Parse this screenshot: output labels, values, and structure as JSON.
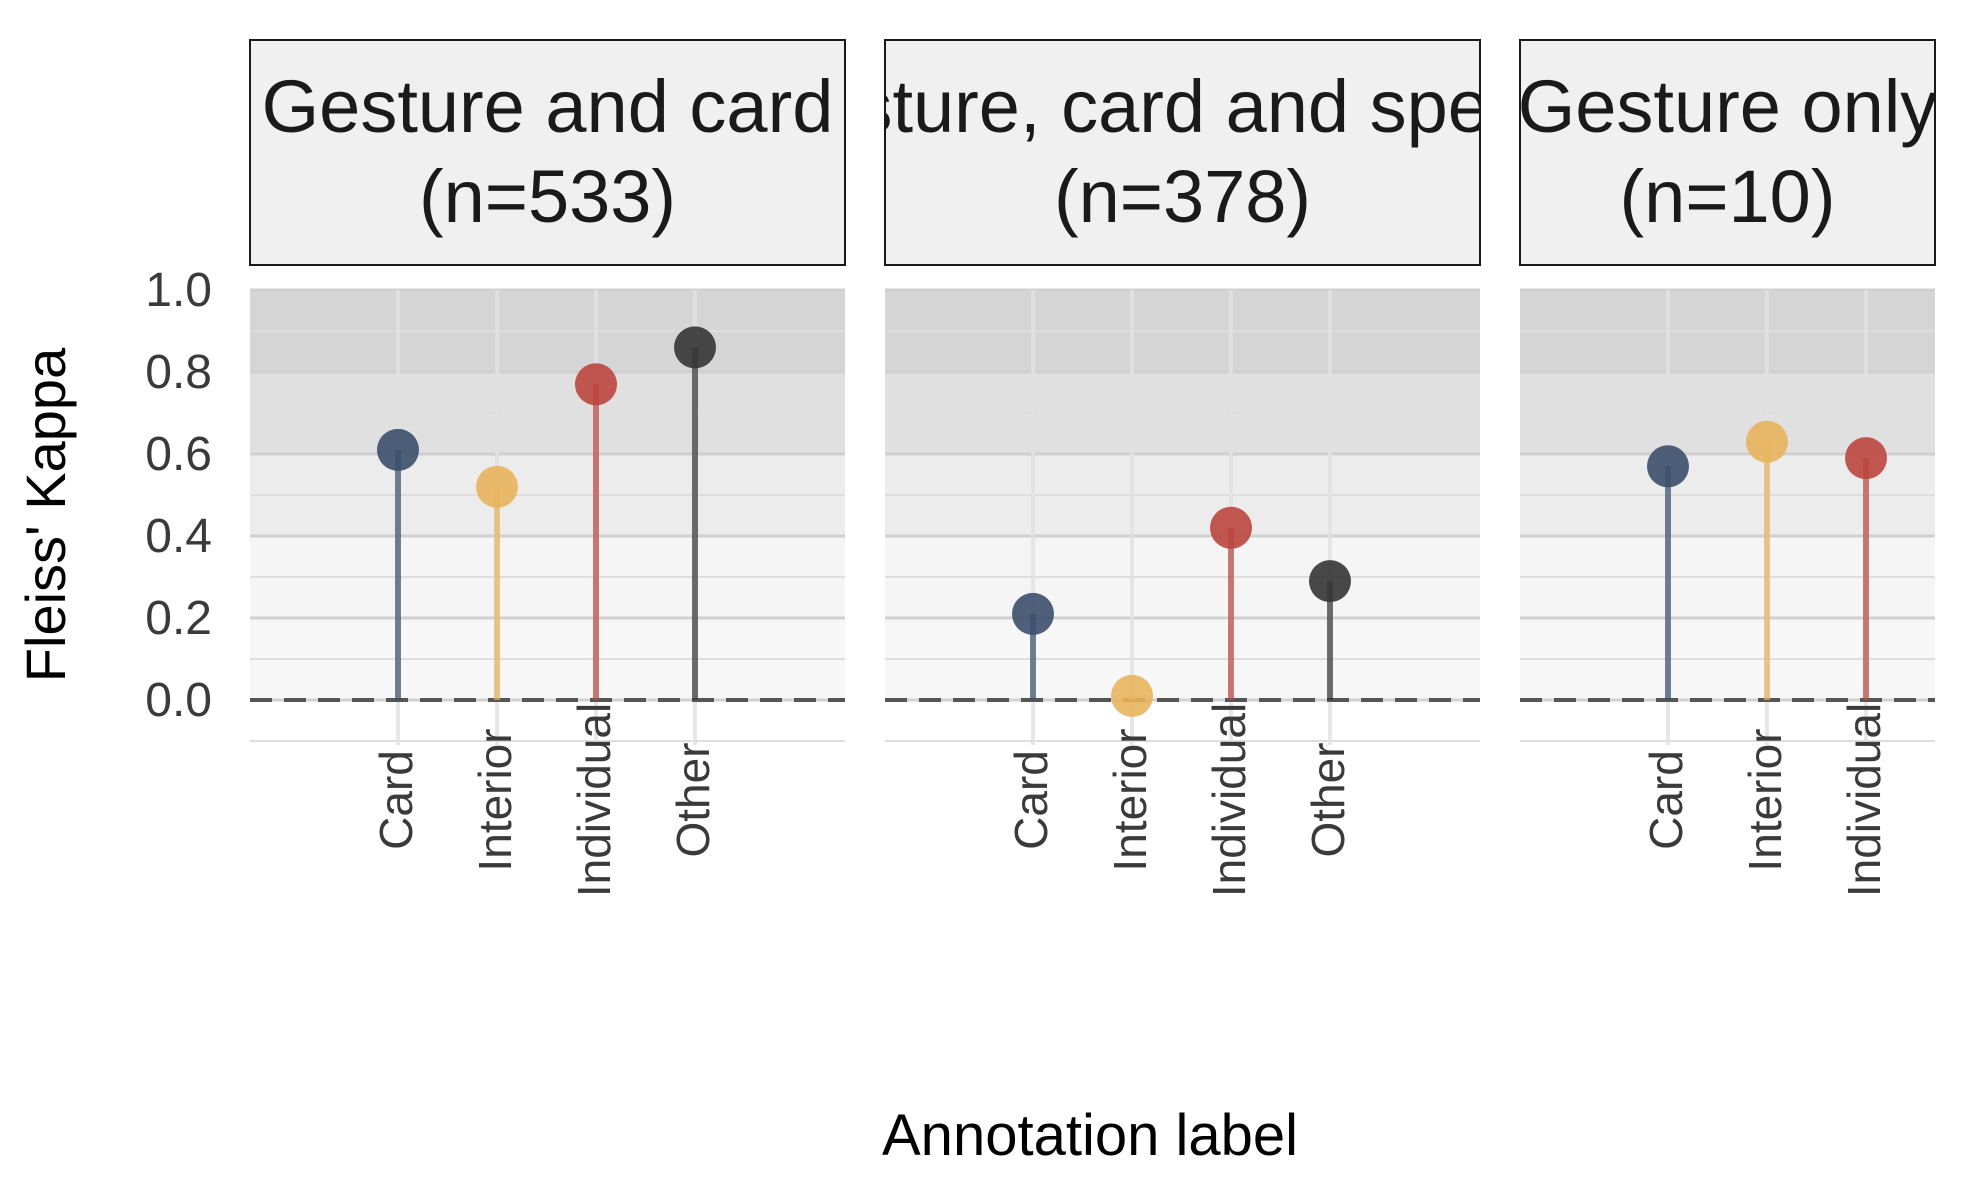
{
  "chart_data": {
    "type": "lollipop",
    "ylabel": "Fleiss' Kappa",
    "xlabel": "Annotation label",
    "ylim": [
      -0.1,
      1.0
    ],
    "yticks": [
      "0.0",
      "0.2",
      "0.4",
      "0.6",
      "0.8",
      "1.0"
    ],
    "reference_line": 0,
    "grid": true,
    "agreement_bands": [
      {
        "from": 0.0,
        "to": 0.2,
        "color": "#f7f7f7"
      },
      {
        "from": 0.2,
        "to": 0.4,
        "color": "#f5f5f5"
      },
      {
        "from": 0.4,
        "to": 0.6,
        "color": "#ececec"
      },
      {
        "from": 0.6,
        "to": 0.8,
        "color": "#e0e0e0"
      },
      {
        "from": 0.8,
        "to": 1.0,
        "color": "#d5d5d5"
      }
    ],
    "colors": {
      "Card": "#3b4f6b",
      "Interior": "#e8b45c",
      "Individual": "#bd453e",
      "Other": "#353535"
    },
    "facets": [
      {
        "title_line1": "Gesture and card",
        "title_line2": "(n=533)",
        "categories": [
          "Card",
          "Interior",
          "Individual",
          "Other"
        ],
        "values": [
          0.61,
          0.52,
          0.77,
          0.86
        ]
      },
      {
        "title_line1": "Gesture, card and speech",
        "title_line2": "(n=378)",
        "categories": [
          "Card",
          "Interior",
          "Individual",
          "Other"
        ],
        "values": [
          0.21,
          0.01,
          0.42,
          0.29
        ]
      },
      {
        "title_line1": "Gesture only",
        "title_line2": "(n=10)",
        "categories": [
          "Card",
          "Interior",
          "Individual"
        ],
        "values": [
          0.57,
          0.63,
          0.59
        ]
      }
    ]
  }
}
